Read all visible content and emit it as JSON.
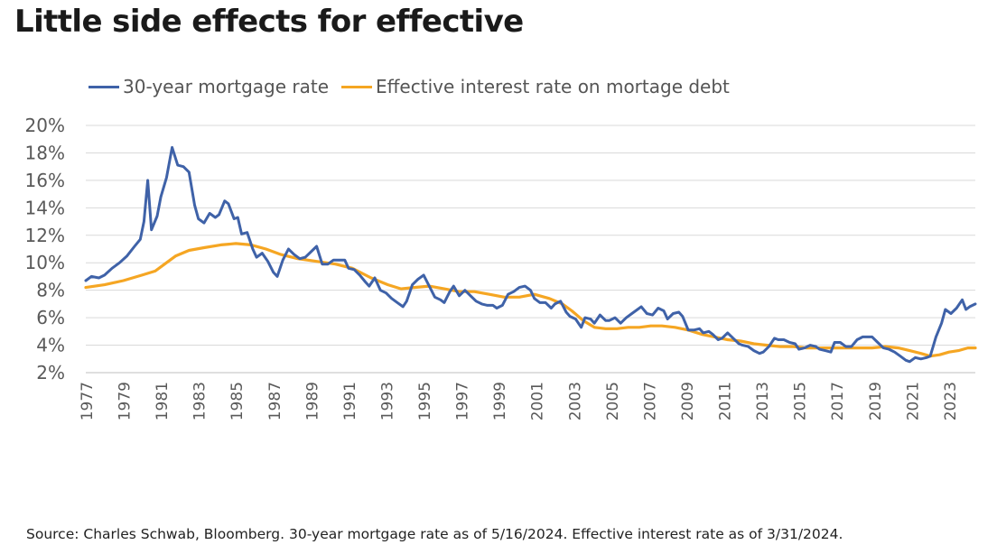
{
  "title": "Little side effects for effective",
  "source": "Source: Charles Schwab, Bloomberg. 30-year mortgage rate as of 5/16/2024. Effective interest rate as of 3/31/2024.",
  "chart_data": {
    "type": "line",
    "title": "Little side effects for effective",
    "xlabel": "",
    "ylabel": "",
    "xlim": [
      1977,
      2024.4
    ],
    "ylim": [
      2,
      20
    ],
    "y_ticks": [
      2,
      4,
      6,
      8,
      10,
      12,
      14,
      16,
      18,
      20
    ],
    "y_tick_labels": [
      "2%",
      "4%",
      "6%",
      "8%",
      "10%",
      "12%",
      "14%",
      "16%",
      "18%",
      "20%"
    ],
    "x_ticks": [
      1977,
      1979,
      1981,
      1983,
      1985,
      1987,
      1989,
      1991,
      1993,
      1995,
      1997,
      1999,
      2001,
      2003,
      2005,
      2007,
      2009,
      2011,
      2013,
      2015,
      2017,
      2019,
      2021,
      2023
    ],
    "x_tick_labels": [
      "1977",
      "1979",
      "1981",
      "1983",
      "1985",
      "1987",
      "1989",
      "1991",
      "1993",
      "1995",
      "1997",
      "1999",
      "2001",
      "2003",
      "2005",
      "2007",
      "2009",
      "2011",
      "2013",
      "2015",
      "2017",
      "2019",
      "2021",
      "2023"
    ],
    "grid": "horizontal",
    "legend_position": "top-left",
    "series": [
      {
        "name": "30-year mortgage rate",
        "color": "#3f62a8",
        "points": [
          [
            1977,
            8.7
          ],
          [
            1977.3,
            9.0
          ],
          [
            1977.7,
            8.9
          ],
          [
            1978,
            9.1
          ],
          [
            1978.4,
            9.6
          ],
          [
            1978.8,
            10.0
          ],
          [
            1979.2,
            10.5
          ],
          [
            1979.6,
            11.2
          ],
          [
            1979.9,
            11.7
          ],
          [
            1980.1,
            13.0
          ],
          [
            1980.3,
            16.0
          ],
          [
            1980.5,
            12.4
          ],
          [
            1980.8,
            13.4
          ],
          [
            1981.0,
            14.8
          ],
          [
            1981.3,
            16.2
          ],
          [
            1981.6,
            18.4
          ],
          [
            1981.9,
            17.1
          ],
          [
            1982.2,
            17.0
          ],
          [
            1982.5,
            16.6
          ],
          [
            1982.8,
            14.2
          ],
          [
            1983.0,
            13.2
          ],
          [
            1983.3,
            12.9
          ],
          [
            1983.6,
            13.6
          ],
          [
            1983.9,
            13.3
          ],
          [
            1984.1,
            13.5
          ],
          [
            1984.4,
            14.5
          ],
          [
            1984.6,
            14.3
          ],
          [
            1984.9,
            13.2
          ],
          [
            1985.1,
            13.3
          ],
          [
            1985.3,
            12.1
          ],
          [
            1985.6,
            12.2
          ],
          [
            1985.9,
            11.0
          ],
          [
            1986.1,
            10.4
          ],
          [
            1986.4,
            10.7
          ],
          [
            1986.7,
            10.1
          ],
          [
            1987.0,
            9.3
          ],
          [
            1987.2,
            9.0
          ],
          [
            1987.5,
            10.2
          ],
          [
            1987.8,
            11.0
          ],
          [
            1988.1,
            10.6
          ],
          [
            1988.4,
            10.3
          ],
          [
            1988.7,
            10.4
          ],
          [
            1989.0,
            10.8
          ],
          [
            1989.3,
            11.2
          ],
          [
            1989.6,
            9.9
          ],
          [
            1989.9,
            9.9
          ],
          [
            1990.2,
            10.2
          ],
          [
            1990.5,
            10.2
          ],
          [
            1990.8,
            10.2
          ],
          [
            1991.0,
            9.6
          ],
          [
            1991.3,
            9.5
          ],
          [
            1991.6,
            9.1
          ],
          [
            1991.9,
            8.6
          ],
          [
            1992.1,
            8.3
          ],
          [
            1992.4,
            8.9
          ],
          [
            1992.7,
            8.0
          ],
          [
            1993.0,
            7.8
          ],
          [
            1993.3,
            7.4
          ],
          [
            1993.6,
            7.1
          ],
          [
            1993.9,
            6.8
          ],
          [
            1994.1,
            7.2
          ],
          [
            1994.4,
            8.4
          ],
          [
            1994.7,
            8.8
          ],
          [
            1995.0,
            9.1
          ],
          [
            1995.3,
            8.3
          ],
          [
            1995.6,
            7.5
          ],
          [
            1995.9,
            7.3
          ],
          [
            1996.1,
            7.1
          ],
          [
            1996.4,
            7.9
          ],
          [
            1996.6,
            8.3
          ],
          [
            1996.9,
            7.6
          ],
          [
            1997.2,
            8.0
          ],
          [
            1997.5,
            7.6
          ],
          [
            1997.8,
            7.2
          ],
          [
            1998.1,
            7.0
          ],
          [
            1998.4,
            6.9
          ],
          [
            1998.7,
            6.9
          ],
          [
            1998.9,
            6.7
          ],
          [
            1999.2,
            6.9
          ],
          [
            1999.5,
            7.7
          ],
          [
            1999.8,
            7.9
          ],
          [
            2000.1,
            8.2
          ],
          [
            2000.4,
            8.3
          ],
          [
            2000.7,
            8.0
          ],
          [
            2000.9,
            7.4
          ],
          [
            2001.2,
            7.1
          ],
          [
            2001.5,
            7.1
          ],
          [
            2001.8,
            6.7
          ],
          [
            2002.0,
            7.0
          ],
          [
            2002.3,
            7.2
          ],
          [
            2002.6,
            6.4
          ],
          [
            2002.8,
            6.1
          ],
          [
            2003.1,
            5.9
          ],
          [
            2003.4,
            5.3
          ],
          [
            2003.6,
            6.0
          ],
          [
            2003.9,
            5.9
          ],
          [
            2004.1,
            5.6
          ],
          [
            2004.4,
            6.2
          ],
          [
            2004.7,
            5.8
          ],
          [
            2004.9,
            5.8
          ],
          [
            2005.2,
            6.0
          ],
          [
            2005.5,
            5.6
          ],
          [
            2005.8,
            6.0
          ],
          [
            2006.1,
            6.3
          ],
          [
            2006.4,
            6.6
          ],
          [
            2006.6,
            6.8
          ],
          [
            2006.9,
            6.3
          ],
          [
            2007.2,
            6.2
          ],
          [
            2007.5,
            6.7
          ],
          [
            2007.8,
            6.5
          ],
          [
            2008.0,
            5.9
          ],
          [
            2008.3,
            6.3
          ],
          [
            2008.6,
            6.4
          ],
          [
            2008.8,
            6.1
          ],
          [
            2009.1,
            5.1
          ],
          [
            2009.4,
            5.1
          ],
          [
            2009.7,
            5.2
          ],
          [
            2009.9,
            4.9
          ],
          [
            2010.2,
            5.0
          ],
          [
            2010.4,
            4.8
          ],
          [
            2010.7,
            4.4
          ],
          [
            2010.9,
            4.5
          ],
          [
            2011.2,
            4.9
          ],
          [
            2011.5,
            4.5
          ],
          [
            2011.8,
            4.1
          ],
          [
            2012.0,
            4.0
          ],
          [
            2012.3,
            3.9
          ],
          [
            2012.6,
            3.6
          ],
          [
            2012.9,
            3.4
          ],
          [
            2013.1,
            3.5
          ],
          [
            2013.4,
            3.9
          ],
          [
            2013.7,
            4.5
          ],
          [
            2013.9,
            4.4
          ],
          [
            2014.2,
            4.4
          ],
          [
            2014.5,
            4.2
          ],
          [
            2014.8,
            4.1
          ],
          [
            2015.0,
            3.7
          ],
          [
            2015.3,
            3.8
          ],
          [
            2015.6,
            4.0
          ],
          [
            2015.9,
            3.9
          ],
          [
            2016.1,
            3.7
          ],
          [
            2016.4,
            3.6
          ],
          [
            2016.7,
            3.5
          ],
          [
            2016.9,
            4.2
          ],
          [
            2017.2,
            4.2
          ],
          [
            2017.5,
            3.9
          ],
          [
            2017.8,
            3.9
          ],
          [
            2018.1,
            4.4
          ],
          [
            2018.4,
            4.6
          ],
          [
            2018.7,
            4.6
          ],
          [
            2018.9,
            4.6
          ],
          [
            2019.2,
            4.2
          ],
          [
            2019.5,
            3.8
          ],
          [
            2019.8,
            3.7
          ],
          [
            2020.1,
            3.5
          ],
          [
            2020.4,
            3.2
          ],
          [
            2020.7,
            2.9
          ],
          [
            2020.9,
            2.8
          ],
          [
            2021.2,
            3.1
          ],
          [
            2021.5,
            3.0
          ],
          [
            2021.8,
            3.1
          ],
          [
            2022.0,
            3.2
          ],
          [
            2022.3,
            4.6
          ],
          [
            2022.6,
            5.6
          ],
          [
            2022.8,
            6.6
          ],
          [
            2023.1,
            6.3
          ],
          [
            2023.4,
            6.7
          ],
          [
            2023.7,
            7.3
          ],
          [
            2023.9,
            6.6
          ],
          [
            2024.1,
            6.8
          ],
          [
            2024.4,
            7.0
          ]
        ]
      },
      {
        "name": "Effective interest rate on mortage debt",
        "color": "#f5a623",
        "points": [
          [
            1977,
            8.2
          ],
          [
            1978,
            8.4
          ],
          [
            1979,
            8.7
          ],
          [
            1980,
            9.1
          ],
          [
            1980.7,
            9.4
          ],
          [
            1981.2,
            9.9
          ],
          [
            1981.8,
            10.5
          ],
          [
            1982.5,
            10.9
          ],
          [
            1983.3,
            11.1
          ],
          [
            1984.2,
            11.3
          ],
          [
            1985,
            11.4
          ],
          [
            1985.8,
            11.3
          ],
          [
            1986.6,
            11.0
          ],
          [
            1987.4,
            10.6
          ],
          [
            1988.3,
            10.3
          ],
          [
            1989.3,
            10.1
          ],
          [
            1990.3,
            9.9
          ],
          [
            1991.2,
            9.6
          ],
          [
            1992.2,
            8.9
          ],
          [
            1993.1,
            8.4
          ],
          [
            1993.8,
            8.1
          ],
          [
            1994.5,
            8.2
          ],
          [
            1995.3,
            8.3
          ],
          [
            1996.1,
            8.1
          ],
          [
            1996.9,
            7.9
          ],
          [
            1997.7,
            7.9
          ],
          [
            1998.5,
            7.7
          ],
          [
            1999.3,
            7.5
          ],
          [
            2000.1,
            7.5
          ],
          [
            2000.9,
            7.7
          ],
          [
            2001.7,
            7.4
          ],
          [
            2002.4,
            7.0
          ],
          [
            2002.9,
            6.5
          ],
          [
            2003.5,
            5.8
          ],
          [
            2004.1,
            5.3
          ],
          [
            2004.7,
            5.2
          ],
          [
            2005.3,
            5.2
          ],
          [
            2005.9,
            5.3
          ],
          [
            2006.5,
            5.3
          ],
          [
            2007.1,
            5.4
          ],
          [
            2007.7,
            5.4
          ],
          [
            2008.4,
            5.3
          ],
          [
            2009.1,
            5.1
          ],
          [
            2009.8,
            4.8
          ],
          [
            2010.5,
            4.6
          ],
          [
            2011.2,
            4.4
          ],
          [
            2011.9,
            4.3
          ],
          [
            2012.6,
            4.1
          ],
          [
            2013.3,
            4.0
          ],
          [
            2014.0,
            3.9
          ],
          [
            2014.7,
            3.9
          ],
          [
            2015.4,
            3.8
          ],
          [
            2016.1,
            3.8
          ],
          [
            2016.8,
            3.8
          ],
          [
            2017.5,
            3.8
          ],
          [
            2018.2,
            3.8
          ],
          [
            2018.9,
            3.8
          ],
          [
            2019.6,
            3.9
          ],
          [
            2020.3,
            3.8
          ],
          [
            2020.9,
            3.6
          ],
          [
            2021.5,
            3.4
          ],
          [
            2022.0,
            3.2
          ],
          [
            2022.5,
            3.3
          ],
          [
            2023.0,
            3.5
          ],
          [
            2023.5,
            3.6
          ],
          [
            2024.0,
            3.8
          ],
          [
            2024.4,
            3.8
          ]
        ]
      }
    ]
  }
}
